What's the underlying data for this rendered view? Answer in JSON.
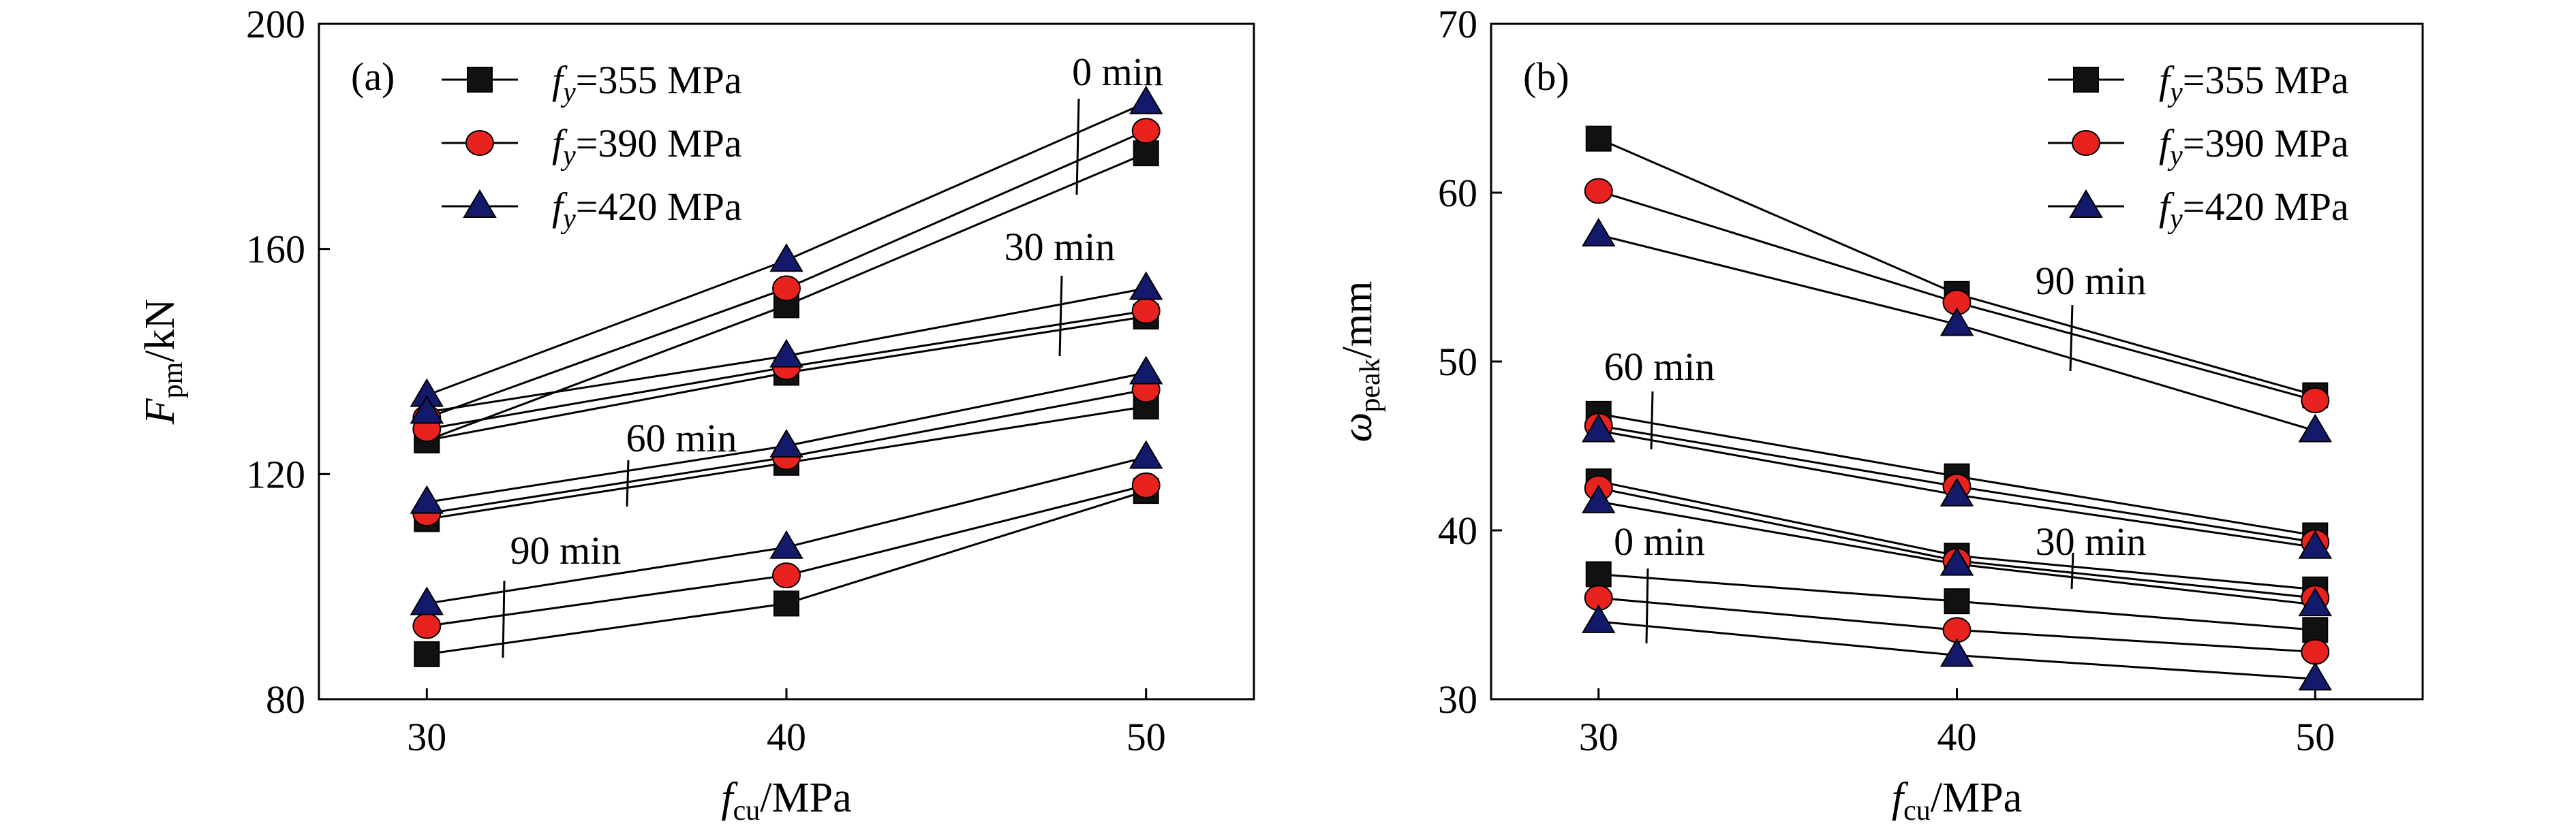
{
  "figure": {
    "background": "#ffffff"
  },
  "legend": {
    "entries": [
      {
        "sym": "f",
        "sub": "y",
        "text": "=355 MPa",
        "marker": "square",
        "fill": "#111111"
      },
      {
        "sym": "f",
        "sub": "y",
        "text": "=390 MPa",
        "marker": "circle",
        "fill": "#e8231f"
      },
      {
        "sym": "f",
        "sub": "y",
        "text": "=420 MPa",
        "marker": "triangle",
        "fill": "#141a6b"
      }
    ]
  },
  "chart_data": [
    {
      "panel": "(a)",
      "type": "line",
      "x": [
        30,
        40,
        50
      ],
      "xlim": [
        27,
        53
      ],
      "ylim": [
        80,
        200
      ],
      "xticks": [
        "30",
        "40",
        "50"
      ],
      "yticks": [
        "80",
        "120",
        "160",
        "200"
      ],
      "xlabel": {
        "main": "f",
        "sub": "cu",
        "rest": "/MPa"
      },
      "ylabel": {
        "main": "F",
        "sub": "pm",
        "rest": "/kN"
      },
      "legend_position": "top-left",
      "annotations": [
        "0 min",
        "30 min",
        "60 min",
        "90 min"
      ],
      "series": [
        {
          "group": "0 min",
          "fy": 355,
          "values": [
            126,
            150,
            177
          ]
        },
        {
          "group": "0 min",
          "fy": 390,
          "values": [
            130,
            153,
            181
          ]
        },
        {
          "group": "0 min",
          "fy": 420,
          "values": [
            134,
            158,
            186
          ]
        },
        {
          "group": "30 min",
          "fy": 355,
          "values": [
            126,
            138,
            148
          ]
        },
        {
          "group": "30 min",
          "fy": 390,
          "values": [
            128,
            139,
            149
          ]
        },
        {
          "group": "30 min",
          "fy": 420,
          "values": [
            131,
            141,
            153
          ]
        },
        {
          "group": "60 min",
          "fy": 355,
          "values": [
            112,
            122,
            132
          ]
        },
        {
          "group": "60 min",
          "fy": 390,
          "values": [
            113,
            123,
            135
          ]
        },
        {
          "group": "60 min",
          "fy": 420,
          "values": [
            115,
            125,
            138
          ]
        },
        {
          "group": "90 min",
          "fy": 355,
          "values": [
            88,
            97,
            117
          ]
        },
        {
          "group": "90 min",
          "fy": 390,
          "values": [
            93,
            102,
            118
          ]
        },
        {
          "group": "90 min",
          "fy": 420,
          "values": [
            97,
            107,
            123
          ]
        }
      ]
    },
    {
      "panel": "(b)",
      "type": "line",
      "x": [
        30,
        40,
        50
      ],
      "xlim": [
        27,
        53
      ],
      "ylim": [
        30,
        70
      ],
      "xticks": [
        "30",
        "40",
        "50"
      ],
      "yticks": [
        "30",
        "40",
        "50",
        "60",
        "70"
      ],
      "xlabel": {
        "main": "f",
        "sub": "cu",
        "rest": "/MPa"
      },
      "ylabel": {
        "main": "ω",
        "sub": "peak",
        "rest": "/mm"
      },
      "legend_position": "top-right",
      "annotations": [
        "90 min",
        "60 min",
        "0 min",
        "30 min"
      ],
      "series": [
        {
          "group": "90 min",
          "fy": 355,
          "values": [
            63.2,
            54.0,
            48.0
          ]
        },
        {
          "group": "90 min",
          "fy": 390,
          "values": [
            60.1,
            53.5,
            47.7
          ]
        },
        {
          "group": "90 min",
          "fy": 420,
          "values": [
            57.5,
            52.2,
            45.9
          ]
        },
        {
          "group": "60 min",
          "fy": 355,
          "values": [
            46.9,
            43.2,
            39.7
          ]
        },
        {
          "group": "60 min",
          "fy": 390,
          "values": [
            46.2,
            42.6,
            39.3
          ]
        },
        {
          "group": "60 min",
          "fy": 420,
          "values": [
            45.9,
            42.1,
            39.0
          ]
        },
        {
          "group": "30 min",
          "fy": 355,
          "values": [
            42.9,
            38.5,
            36.5
          ]
        },
        {
          "group": "30 min",
          "fy": 390,
          "values": [
            42.5,
            38.2,
            36.0
          ]
        },
        {
          "group": "30 min",
          "fy": 420,
          "values": [
            41.7,
            38.0,
            35.6
          ]
        },
        {
          "group": "0 min",
          "fy": 355,
          "values": [
            37.4,
            35.8,
            34.1
          ]
        },
        {
          "group": "0 min",
          "fy": 390,
          "values": [
            36.0,
            34.1,
            32.8
          ]
        },
        {
          "group": "0 min",
          "fy": 420,
          "values": [
            34.6,
            32.6,
            31.2
          ]
        }
      ]
    }
  ]
}
